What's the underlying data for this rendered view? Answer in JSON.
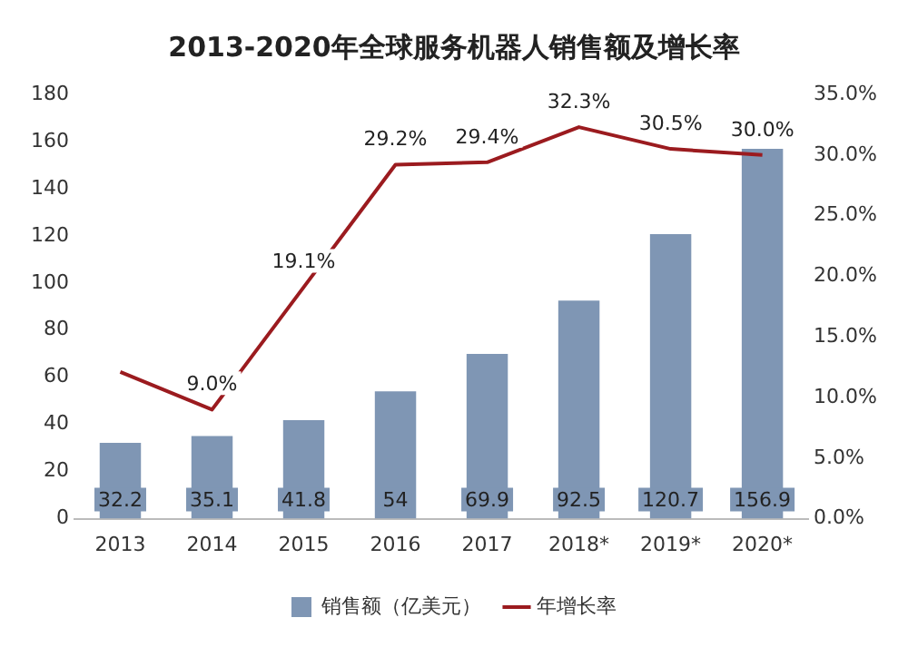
{
  "chart_data": {
    "type": "bar",
    "title": "2013-2020年全球服务机器人销售额及增长率",
    "categories": [
      "2013",
      "2014",
      "2015",
      "2016",
      "2017",
      "2018*",
      "2019*",
      "2020*"
    ],
    "series": [
      {
        "name": "销售额（亿美元）",
        "color": "#7f96b4",
        "values": [
          32.2,
          35.1,
          41.8,
          54,
          69.9,
          92.5,
          120.7,
          156.9
        ],
        "value_labels": [
          "32.2",
          "35.1",
          "41.8",
          "54",
          "69.9",
          "92.5",
          "120.7",
          "156.9"
        ]
      },
      {
        "name": "年增长率",
        "type": "line",
        "axis": "y2",
        "color": "#9b1b1f",
        "values": [
          12.1,
          9.0,
          19.1,
          29.2,
          29.4,
          32.3,
          30.5,
          30.0
        ],
        "value_labels": [
          null,
          "9.0%",
          "19.1%",
          "29.2%",
          "29.4%",
          "32.3%",
          "30.5%",
          "30.0%"
        ]
      }
    ],
    "ylim": [
      0,
      180
    ],
    "yticks": [
      0,
      20,
      40,
      60,
      80,
      100,
      120,
      140,
      160,
      180
    ],
    "y2lim": [
      0,
      35
    ],
    "y2ticks": [
      {
        "value": 0,
        "label": "0.0%"
      },
      {
        "value": 5,
        "label": "5.0%"
      },
      {
        "value": 10,
        "label": "10.0%"
      },
      {
        "value": 15,
        "label": "15.0%"
      },
      {
        "value": 20,
        "label": "20.0%"
      },
      {
        "value": 25,
        "label": "25.0%"
      },
      {
        "value": 30,
        "label": "30.0%"
      },
      {
        "value": 35,
        "label": "35.0%"
      }
    ],
    "grid": false,
    "legend": "bottom",
    "marker": "none",
    "line_style": "solid"
  }
}
